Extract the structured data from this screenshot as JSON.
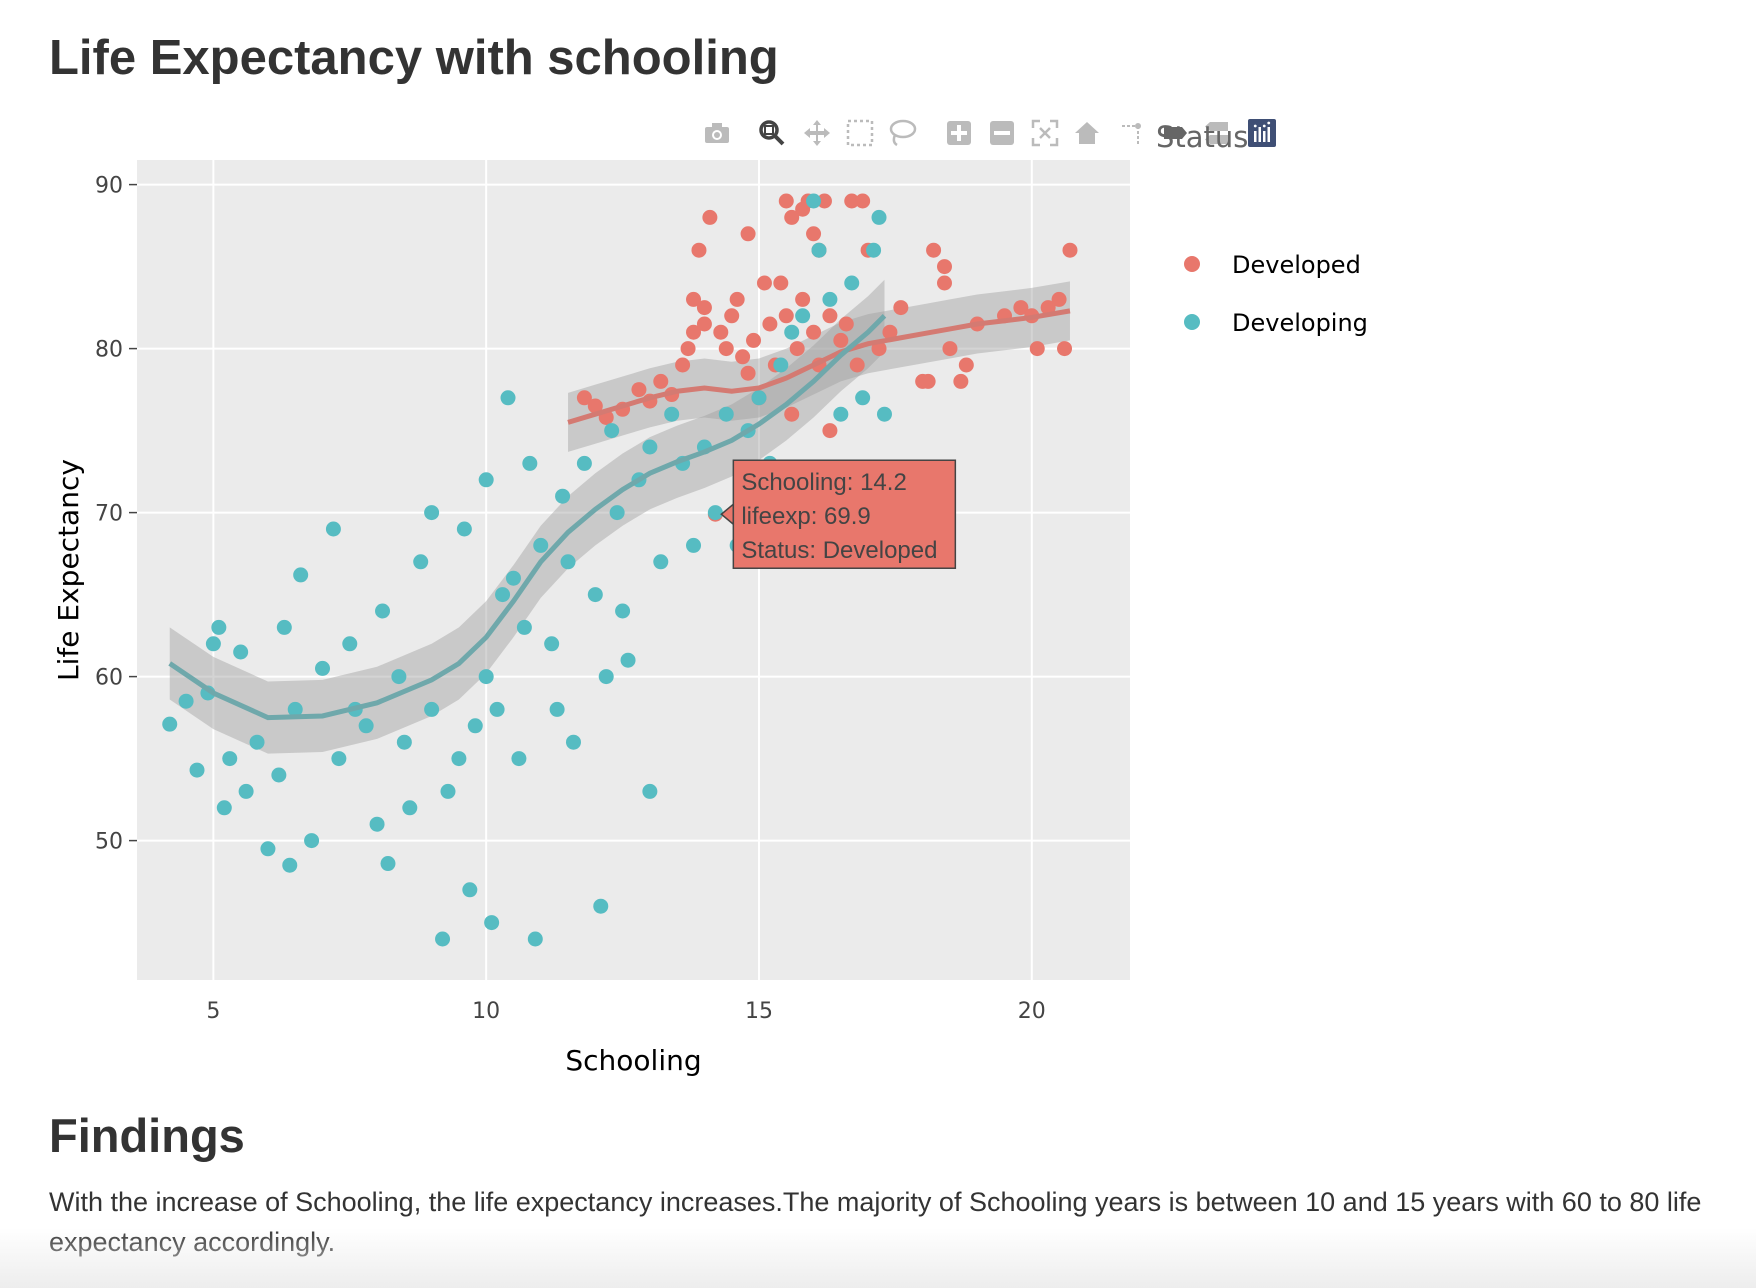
{
  "page": {
    "title": "Life Expectancy with schooling",
    "findings_heading": "Findings",
    "findings_text": "With the increase of Schooling, the life expectancy increases.The majority of Schooling years is between 10 and 15 years with 60 to 80 life expectancy accordingly."
  },
  "modebar": {
    "icons": [
      "camera-icon",
      "zoom-icon",
      "pan-icon",
      "box-select-icon",
      "lasso-icon",
      "zoom-in-icon",
      "zoom-out-icon",
      "autoscale-icon",
      "reset-axes-icon",
      "spike-lines-icon",
      "hover-closest-icon",
      "hover-compare-icon",
      "plotly-logo-icon"
    ],
    "icon_color": "#bbbbbb",
    "active_icon_color": "#444444",
    "logo_color": "#3f4f75"
  },
  "chart_data": {
    "type": "scatter",
    "title": "",
    "xlabel": "Schooling",
    "ylabel": "Life Expectancy",
    "xlim": [
      3.6,
      21.8
    ],
    "ylim": [
      41.5,
      91.5
    ],
    "xticks": [
      5,
      10,
      15,
      20
    ],
    "yticks": [
      50,
      60,
      70,
      80,
      90
    ],
    "grid": true,
    "background": "#ebebeb",
    "legend": {
      "title": "Status",
      "placement": "right",
      "entries": [
        "Developed",
        "Developing"
      ]
    },
    "series": [
      {
        "name": "Developed",
        "color": "#e8776c",
        "points": [
          [
            11.8,
            77
          ],
          [
            12,
            76.5
          ],
          [
            12.2,
            75.8
          ],
          [
            12.5,
            76.3
          ],
          [
            12.8,
            77.5
          ],
          [
            13,
            76.8
          ],
          [
            13.2,
            78
          ],
          [
            13.4,
            77.2
          ],
          [
            13.6,
            79
          ],
          [
            13.7,
            80
          ],
          [
            13.8,
            81
          ],
          [
            13.8,
            83
          ],
          [
            13.9,
            86
          ],
          [
            14,
            81.5
          ],
          [
            14,
            82.5
          ],
          [
            14.1,
            88
          ],
          [
            14.2,
            69.9
          ],
          [
            14.3,
            81
          ],
          [
            14.4,
            80
          ],
          [
            14.5,
            82
          ],
          [
            14.6,
            83
          ],
          [
            14.7,
            79.5
          ],
          [
            14.8,
            78.5
          ],
          [
            14.8,
            87
          ],
          [
            14.9,
            80.5
          ],
          [
            15,
            77
          ],
          [
            15.1,
            84
          ],
          [
            15.2,
            81.5
          ],
          [
            15.3,
            79
          ],
          [
            15.4,
            84
          ],
          [
            15.5,
            89
          ],
          [
            15.5,
            82
          ],
          [
            15.6,
            76
          ],
          [
            15.6,
            88
          ],
          [
            15.7,
            80
          ],
          [
            15.8,
            88.5
          ],
          [
            15.8,
            83
          ],
          [
            15.9,
            89
          ],
          [
            16,
            87
          ],
          [
            16,
            81
          ],
          [
            16.1,
            79
          ],
          [
            16.1,
            86
          ],
          [
            16.2,
            89
          ],
          [
            16.3,
            82
          ],
          [
            16.3,
            75
          ],
          [
            16.5,
            80.5
          ],
          [
            16.6,
            81.5
          ],
          [
            16.7,
            89
          ],
          [
            16.8,
            79
          ],
          [
            16.9,
            89
          ],
          [
            17,
            86
          ],
          [
            17.2,
            80
          ],
          [
            17.4,
            81
          ],
          [
            17.6,
            82.5
          ],
          [
            18,
            78
          ],
          [
            18.1,
            78
          ],
          [
            18.2,
            86
          ],
          [
            18.4,
            84
          ],
          [
            18.4,
            85
          ],
          [
            18.5,
            80
          ],
          [
            18.7,
            78
          ],
          [
            18.8,
            79
          ],
          [
            19,
            81.5
          ],
          [
            19.5,
            82
          ],
          [
            19.8,
            82.5
          ],
          [
            20,
            82
          ],
          [
            20.1,
            80
          ],
          [
            20.3,
            82.5
          ],
          [
            20.5,
            83
          ],
          [
            20.6,
            80
          ],
          [
            20.7,
            86
          ]
        ],
        "smoother": [
          [
            11.5,
            75.5
          ],
          [
            12,
            76
          ],
          [
            12.5,
            76.5
          ],
          [
            13,
            77
          ],
          [
            13.5,
            77.4
          ],
          [
            14,
            77.6
          ],
          [
            14.5,
            77.4
          ],
          [
            15,
            77.6
          ],
          [
            15.5,
            78.2
          ],
          [
            16,
            79
          ],
          [
            16.5,
            79.8
          ],
          [
            17,
            80.3
          ],
          [
            17.5,
            80.6
          ],
          [
            18,
            80.9
          ],
          [
            18.5,
            81.2
          ],
          [
            19,
            81.5
          ],
          [
            19.5,
            81.7
          ],
          [
            20,
            81.9
          ],
          [
            20.7,
            82.3
          ]
        ]
      },
      {
        "name": "Developing",
        "color": "#56bcc2",
        "points": [
          [
            4.2,
            57.1
          ],
          [
            4.5,
            58.5
          ],
          [
            4.7,
            54.3
          ],
          [
            4.9,
            59
          ],
          [
            5,
            62
          ],
          [
            5.1,
            63
          ],
          [
            5.2,
            52
          ],
          [
            5.3,
            55
          ],
          [
            5.5,
            61.5
          ],
          [
            5.6,
            53
          ],
          [
            5.8,
            56
          ],
          [
            6,
            49.5
          ],
          [
            6.2,
            54
          ],
          [
            6.3,
            63
          ],
          [
            6.4,
            48.5
          ],
          [
            6.5,
            58
          ],
          [
            6.6,
            66.2
          ],
          [
            6.8,
            50
          ],
          [
            7,
            60.5
          ],
          [
            7.2,
            69
          ],
          [
            7.3,
            55
          ],
          [
            7.5,
            62
          ],
          [
            7.6,
            58
          ],
          [
            7.8,
            57
          ],
          [
            8,
            51
          ],
          [
            8.1,
            64
          ],
          [
            8.2,
            48.6
          ],
          [
            8.4,
            60
          ],
          [
            8.5,
            56
          ],
          [
            8.6,
            52
          ],
          [
            8.8,
            67
          ],
          [
            9,
            58
          ],
          [
            9,
            70
          ],
          [
            9.2,
            44
          ],
          [
            9.3,
            53
          ],
          [
            9.5,
            55
          ],
          [
            9.6,
            69
          ],
          [
            9.7,
            47
          ],
          [
            9.8,
            57
          ],
          [
            10,
            60
          ],
          [
            10,
            72
          ],
          [
            10.1,
            45
          ],
          [
            10.2,
            58
          ],
          [
            10.3,
            65
          ],
          [
            10.4,
            77
          ],
          [
            10.5,
            66
          ],
          [
            10.6,
            55
          ],
          [
            10.7,
            63
          ],
          [
            10.8,
            73
          ],
          [
            10.9,
            44
          ],
          [
            11,
            68
          ],
          [
            11.2,
            62
          ],
          [
            11.3,
            58
          ],
          [
            11.4,
            71
          ],
          [
            11.5,
            67
          ],
          [
            11.6,
            56
          ],
          [
            11.8,
            73
          ],
          [
            12,
            65
          ],
          [
            12.1,
            46
          ],
          [
            12.2,
            60
          ],
          [
            12.3,
            75
          ],
          [
            12.4,
            70
          ],
          [
            12.5,
            64
          ],
          [
            12.6,
            61
          ],
          [
            12.8,
            72
          ],
          [
            13,
            74
          ],
          [
            13,
            53
          ],
          [
            13.2,
            67
          ],
          [
            13.4,
            76
          ],
          [
            13.6,
            73
          ],
          [
            13.8,
            68
          ],
          [
            14,
            74
          ],
          [
            14.2,
            70
          ],
          [
            14.4,
            76
          ],
          [
            14.6,
            68
          ],
          [
            14.8,
            75
          ],
          [
            15,
            77
          ],
          [
            15.2,
            73
          ],
          [
            15.4,
            79
          ],
          [
            15.6,
            81
          ],
          [
            15.8,
            82
          ],
          [
            16,
            89
          ],
          [
            16.1,
            86
          ],
          [
            16.3,
            83
          ],
          [
            16.5,
            76
          ],
          [
            16.7,
            84
          ],
          [
            16.9,
            77
          ],
          [
            17.1,
            86
          ],
          [
            17.2,
            88
          ],
          [
            17.3,
            76
          ]
        ],
        "smoother": [
          [
            4.2,
            60.8
          ],
          [
            5,
            59
          ],
          [
            6,
            57.5
          ],
          [
            7,
            57.6
          ],
          [
            8,
            58.4
          ],
          [
            9,
            59.8
          ],
          [
            9.5,
            60.8
          ],
          [
            10,
            62.4
          ],
          [
            10.5,
            64.6
          ],
          [
            11,
            67
          ],
          [
            11.5,
            68.8
          ],
          [
            12,
            70.2
          ],
          [
            12.5,
            71.4
          ],
          [
            13,
            72.4
          ],
          [
            13.5,
            73.1
          ],
          [
            14,
            73.7
          ],
          [
            14.5,
            74.4
          ],
          [
            15,
            75.4
          ],
          [
            15.5,
            76.6
          ],
          [
            16,
            78
          ],
          [
            16.5,
            79.6
          ],
          [
            17,
            81
          ],
          [
            17.3,
            82
          ]
        ]
      }
    ],
    "hover": {
      "lines": [
        "Schooling: 14.2",
        "lifeexp: 69.9",
        "Status: Developed"
      ],
      "x": 14.2,
      "y": 69.9,
      "color": "#e8776c"
    }
  }
}
